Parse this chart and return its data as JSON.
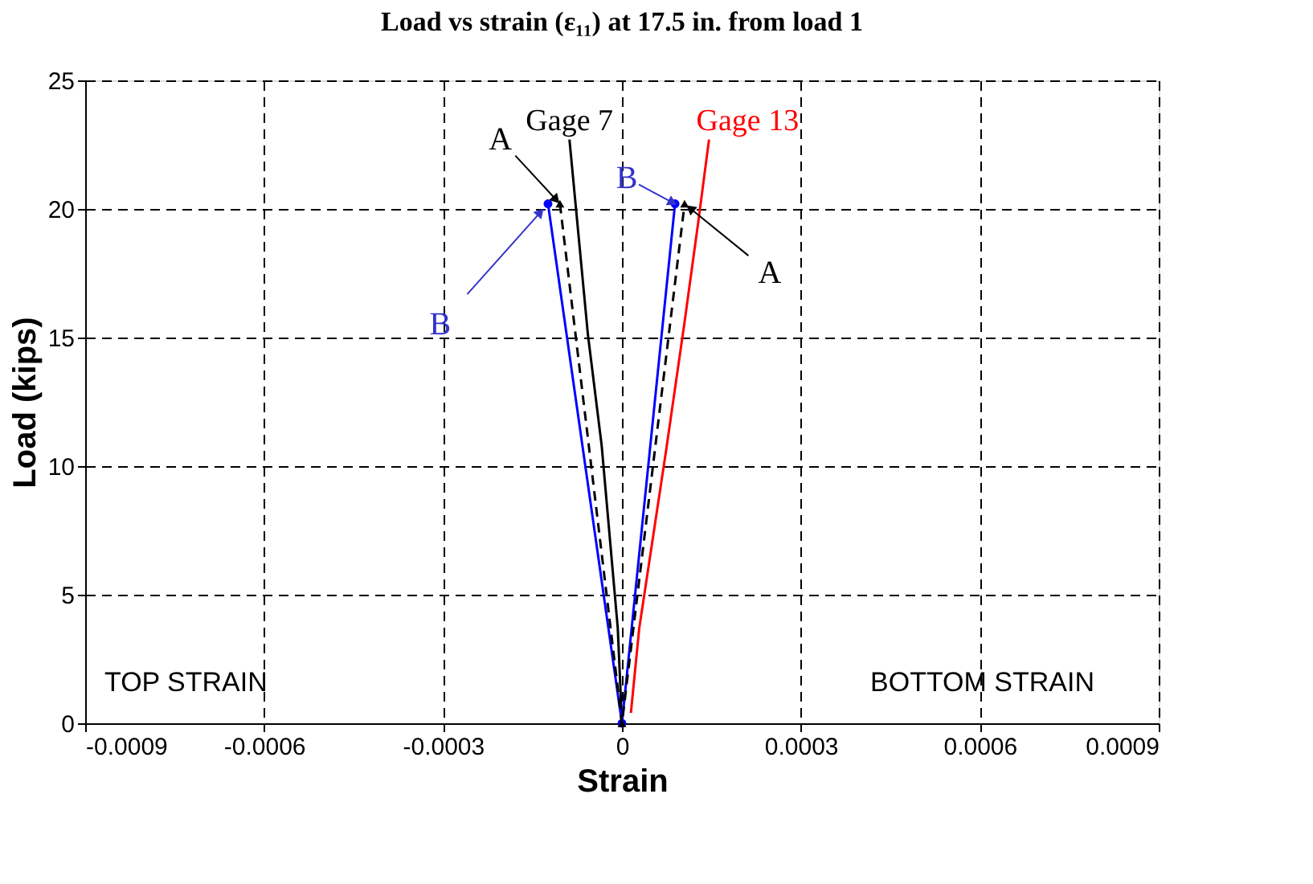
{
  "chart_data": {
    "type": "line",
    "title": "Load vs strain (ε₁₁) at 17.5 in. from load 1",
    "xlabel": "Strain",
    "ylabel": "Load (kips)",
    "xlim": [
      -0.0009,
      0.0009
    ],
    "xticks": [
      -0.0009,
      -0.0006,
      -0.0003,
      0,
      0.0003,
      0.0006,
      0.0009
    ],
    "ylim": [
      0,
      25
    ],
    "yticks": [
      0,
      5,
      10,
      15,
      20,
      25
    ],
    "grid": true,
    "legend": false,
    "series": [
      {
        "name": "Gage 7",
        "color": "#000000",
        "line_style": "solid",
        "marker": "none",
        "x": [
          0,
          -7e-06,
          -3.4e-05,
          -5.7e-05,
          -8.8e-05
        ],
        "values": [
          0,
          3.7,
          10.8,
          15.1,
          22.7
        ]
      },
      {
        "name": "Gage 13",
        "color": "#ff0000",
        "line_style": "solid",
        "marker": "none",
        "x": [
          1.5e-05,
          2.9e-05,
          7.4e-05,
          0.000105,
          0.000128,
          0.000146
        ],
        "values": [
          0.4,
          3.7,
          10.6,
          15.6,
          19.5,
          22.7
        ]
      },
      {
        "color": "#0000ff",
        "line_style": "solid",
        "marker": "circle",
        "x": [
          -0.000124,
          0,
          8.9e-05
        ],
        "values": [
          20.2,
          0,
          20.2
        ]
      },
      {
        "color": "#000000",
        "line_style": "dashed",
        "marker": "triangle",
        "x": [
          -0.000104,
          0,
          0.000105
        ],
        "values": [
          20.2,
          0,
          20.2
        ]
      }
    ],
    "annotations": [
      {
        "text": "A",
        "x": -0.000104,
        "y": 20.2
      },
      {
        "text": "B",
        "x": -0.000124,
        "y": 20.2
      },
      {
        "text": "B",
        "x": 8.9e-05,
        "y": 20.2
      },
      {
        "text": "A",
        "x": 0.000105,
        "y": 20.2
      },
      "TOP STRAIN",
      "BOTTOM STRAIN"
    ]
  }
}
